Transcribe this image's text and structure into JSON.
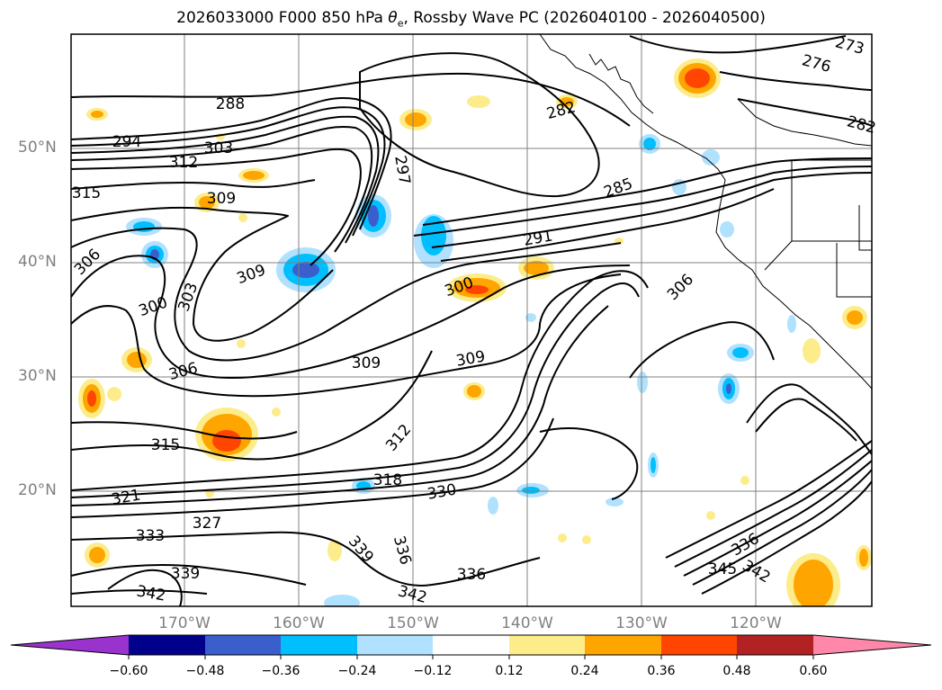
{
  "title": "2026033000 F000 850 hPa θe, Rossby Wave PC (2026040100 - 2026040500)",
  "title_parts": {
    "pre": "2026033000 F000 850 hPa ",
    "var": "θ",
    "sub": "e",
    "post": ", Rossby Wave PC (2026040100 - 2026040500)"
  },
  "lat_labels": [
    "50°N",
    "40°N",
    "30°N",
    "20°N"
  ],
  "lon_labels": [
    "170°W",
    "160°W",
    "150°W",
    "140°W",
    "130°W",
    "120°W"
  ],
  "contour_labels": [
    "288",
    "294",
    "303",
    "312",
    "315",
    "309",
    "306",
    "300",
    "303",
    "309",
    "306",
    "309",
    "315",
    "297",
    "273",
    "276",
    "282",
    "282",
    "285",
    "291",
    "300",
    "306",
    "309",
    "312",
    "318",
    "321",
    "327",
    "330",
    "333",
    "339",
    "342",
    "339",
    "336",
    "342",
    "336",
    "345",
    "336",
    "342"
  ],
  "colorbar": {
    "labels": [
      "−0.60",
      "−0.48",
      "−0.36",
      "−0.24",
      "−0.12",
      "0.12",
      "0.24",
      "0.36",
      "0.48",
      "0.60"
    ],
    "colors": [
      "#9a32cd",
      "#00008b",
      "#3a5fcd",
      "#00bfff",
      "#b0e2ff",
      "#ffffff",
      "#fdec8a",
      "#ffa500",
      "#ff4500",
      "#b22222",
      "#ff88aa"
    ]
  },
  "colors": {
    "frame": "#000000",
    "grid": "#808080",
    "contour": "#000000",
    "axis_text": "#808080"
  }
}
